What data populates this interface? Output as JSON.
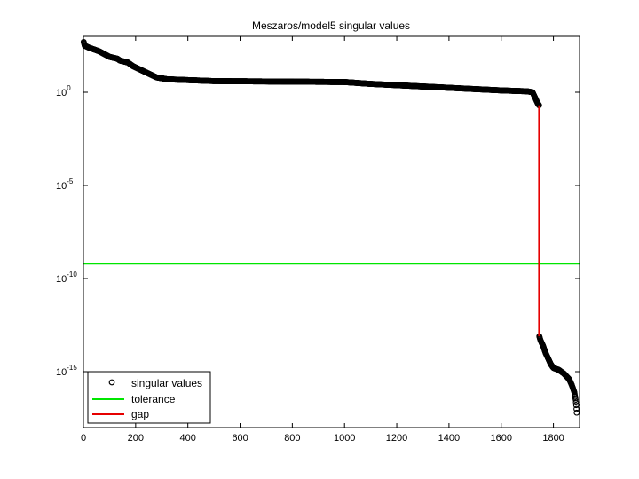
{
  "chart_data": {
    "type": "scatter",
    "title": "Meszaros/model5 singular values",
    "xlabel": "",
    "ylabel": "",
    "xlim": [
      0,
      1900
    ],
    "ylim_log10": [
      -18,
      3
    ],
    "y_scale": "log",
    "grid": false,
    "legend_position": "bottom-left",
    "x_ticks": [
      0,
      200,
      400,
      600,
      800,
      1000,
      1200,
      1400,
      1600,
      1800
    ],
    "x_tick_labels": [
      "0",
      "200",
      "400",
      "600",
      "800",
      "1000",
      "1200",
      "1400",
      "1600",
      "1800"
    ],
    "y_ticks_log10": [
      0,
      -5,
      -10,
      -15
    ],
    "y_tick_labels": [
      {
        "base": "10",
        "exp": "0"
      },
      {
        "base": "10",
        "exp": "-5"
      },
      {
        "base": "10",
        "exp": "-10"
      },
      {
        "base": "10",
        "exp": "-15"
      }
    ],
    "series": [
      {
        "name": "singular values",
        "color": "#000000",
        "marker": "open-circle",
        "n": 1889,
        "profile_x": [
          1,
          5,
          20,
          60,
          100,
          130,
          140,
          170,
          190,
          220,
          250,
          280,
          300,
          320,
          350,
          500,
          1000,
          1100,
          1600,
          1700,
          1720,
          1730,
          1740,
          1745
        ],
        "profile_log10": [
          2.7,
          2.5,
          2.4,
          2.2,
          1.9,
          1.8,
          1.7,
          1.6,
          1.4,
          1.2,
          1.0,
          0.8,
          0.75,
          0.7,
          0.68,
          0.6,
          0.55,
          0.45,
          0.1,
          0.05,
          0.0,
          -0.3,
          -0.6,
          -0.7
        ],
        "tail_profile_x": [
          1746,
          1750,
          1760,
          1770,
          1780,
          1790,
          1800,
          1820,
          1840,
          1860,
          1870,
          1880,
          1885,
          1887,
          1889
        ],
        "tail_profile_log10": [
          -13.1,
          -13.3,
          -13.6,
          -14.0,
          -14.3,
          -14.6,
          -14.8,
          -14.9,
          -15.1,
          -15.4,
          -15.7,
          -16.1,
          -16.5,
          -16.8,
          -17.2
        ]
      },
      {
        "name": "tolerance",
        "color": "#00e600",
        "y_log10": -9.2
      },
      {
        "name": "gap",
        "color": "#e60000",
        "x": 1745,
        "y_log10": [
          -0.7,
          -13.1
        ]
      }
    ]
  }
}
